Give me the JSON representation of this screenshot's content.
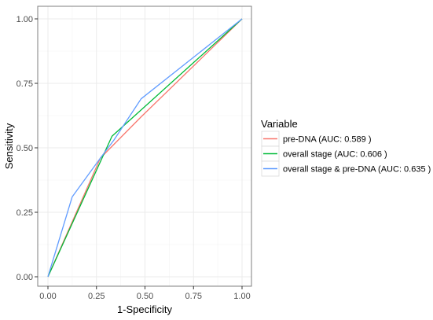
{
  "chart_data": {
    "type": "line",
    "title": "",
    "xlabel": "1-Specificity",
    "ylabel": "Sensitivity",
    "xlim": [
      0,
      1
    ],
    "ylim": [
      0,
      1
    ],
    "xticks": [
      "0.00",
      "0.25",
      "0.50",
      "0.75",
      "1.00"
    ],
    "yticks": [
      "0.00",
      "0.25",
      "0.50",
      "0.75",
      "1.00"
    ],
    "grid": true,
    "legend": {
      "title": "Variable",
      "position": "right"
    },
    "series": [
      {
        "name": "pre-DNA (AUC: 0.589 )",
        "color": "#F8766D",
        "x": [
          0,
          0.27,
          0.48,
          1
        ],
        "y": [
          0,
          0.46,
          0.62,
          1
        ]
      },
      {
        "name": "overall stage (AUC: 0.606 )",
        "color": "#00BA38",
        "x": [
          0,
          0.33,
          1
        ],
        "y": [
          0,
          0.545,
          1
        ]
      },
      {
        "name": "overall stage & pre-DNA (AUC: 0.635 )",
        "color": "#619CFF",
        "x": [
          0,
          0.125,
          0.27,
          0.34,
          0.48,
          1
        ],
        "y": [
          0,
          0.31,
          0.46,
          0.53,
          0.69,
          1
        ]
      }
    ]
  }
}
